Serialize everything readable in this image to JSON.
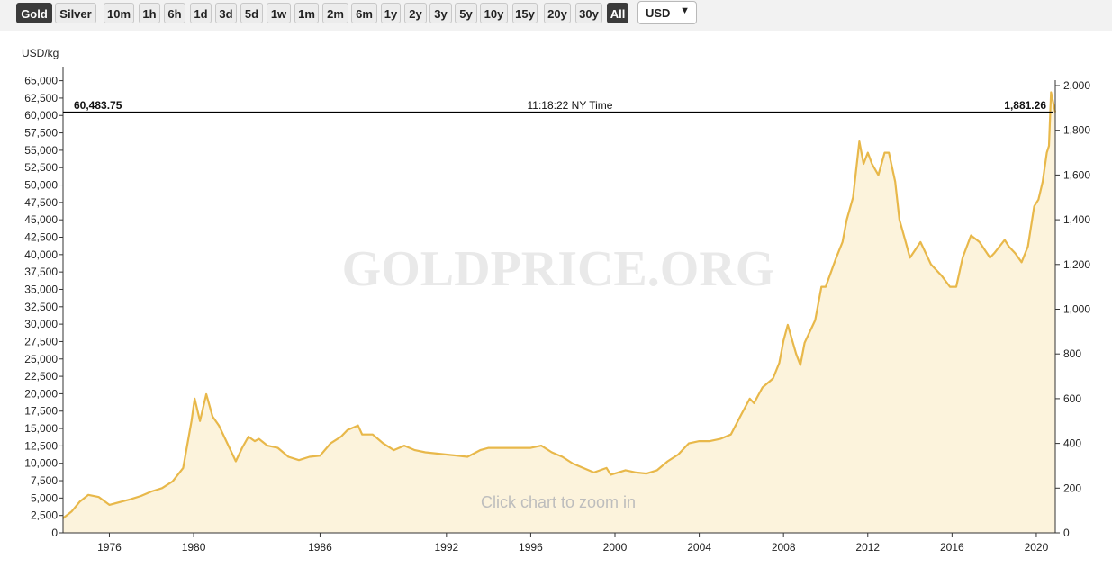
{
  "toolbar": {
    "metal_buttons": [
      {
        "label": "Gold",
        "active": true
      },
      {
        "label": "Silver",
        "active": false
      }
    ],
    "range_buttons": [
      {
        "label": "10m",
        "active": false
      },
      {
        "label": "1h",
        "active": false
      },
      {
        "label": "6h",
        "active": false
      },
      {
        "label": "1d",
        "active": false
      },
      {
        "label": "3d",
        "active": false
      },
      {
        "label": "5d",
        "active": false
      },
      {
        "label": "1w",
        "active": false
      },
      {
        "label": "1m",
        "active": false
      },
      {
        "label": "2m",
        "active": false
      },
      {
        "label": "6m",
        "active": false
      },
      {
        "label": "1y",
        "active": false
      },
      {
        "label": "2y",
        "active": false
      },
      {
        "label": "3y",
        "active": false
      },
      {
        "label": "5y",
        "active": false
      },
      {
        "label": "10y",
        "active": false
      },
      {
        "label": "15y",
        "active": false
      },
      {
        "label": "20y",
        "active": false
      },
      {
        "label": "30y",
        "active": false
      },
      {
        "label": "All",
        "active": true
      }
    ],
    "currency": "USD",
    "chevron_icon": "chevron-down-icon"
  },
  "chart_data": {
    "type": "area",
    "watermark": "GOLDPRICE.ORG",
    "hint": "Click chart to zoom in",
    "unit_label": "USD/kg",
    "line_color": "#e8b84a",
    "fill_color": "#fcf3dc",
    "crosshair": {
      "left_value": "60,483.75",
      "time": "11:18:22 NY Time",
      "right_value": "1,881.26",
      "y_value_usd_oz": 1881.26
    },
    "x_range": [
      1973.8,
      2020.9
    ],
    "x_ticks": [
      "1976",
      "1980",
      "1986",
      "1992",
      "1996",
      "2000",
      "2004",
      "2008",
      "2012",
      "2016",
      "2020"
    ],
    "left_axis": {
      "ticks": [
        "0",
        "2,500",
        "5,000",
        "7,500",
        "10,000",
        "12,500",
        "15,000",
        "17,500",
        "20,000",
        "22,500",
        "25,000",
        "27,500",
        "30,000",
        "32,500",
        "35,000",
        "37,500",
        "40,000",
        "42,500",
        "45,000",
        "47,500",
        "50,000",
        "52,500",
        "55,000",
        "57,500",
        "60,000",
        "62,500",
        "65,000"
      ]
    },
    "right_axis": {
      "ylim": [
        0,
        2000
      ],
      "ticks": [
        "0",
        "200",
        "400",
        "600",
        "800",
        "1,000",
        "1,200",
        "1,400",
        "1,600",
        "1,800",
        "2,000"
      ]
    },
    "series": [
      {
        "x": [
          1973.8,
          1974.2,
          1974.6,
          1975.0,
          1975.5,
          1976.0,
          1976.6,
          1977.0,
          1977.5,
          1978.0,
          1978.5,
          1979.0,
          1979.5,
          1979.9,
          1980.05,
          1980.3,
          1980.6,
          1980.9,
          1981.2,
          1981.6,
          1982.0,
          1982.3,
          1982.6,
          1982.9,
          1983.1,
          1983.5,
          1984.0,
          1984.5,
          1985.0,
          1985.5,
          1986.0,
          1986.5,
          1987.0,
          1987.3,
          1987.8,
          1988.0,
          1988.5,
          1989.0,
          1989.5,
          1990.0,
          1990.5,
          1991.0,
          1992.0,
          1993.0,
          1993.6,
          1994.0,
          1995.0,
          1996.0,
          1996.5,
          1997.0,
          1997.5,
          1998.0,
          1999.0,
          1999.6,
          1999.8,
          2000.5,
          2001.0,
          2001.5,
          2002.0,
          2002.5,
          2003.0,
          2003.5,
          2004.0,
          2004.5,
          2005.0,
          2005.5,
          2006.0,
          2006.4,
          2006.6,
          2007.0,
          2007.5,
          2007.8,
          2008.0,
          2008.2,
          2008.6,
          2008.8,
          2009.0,
          2009.5,
          2009.8,
          2010.0,
          2010.5,
          2010.8,
          2011.0,
          2011.3,
          2011.6,
          2011.8,
          2012.0,
          2012.2,
          2012.5,
          2012.8,
          2013.0,
          2013.3,
          2013.5,
          2013.8,
          2014.0,
          2014.5,
          2015.0,
          2015.5,
          2015.9,
          2016.2,
          2016.5,
          2016.9,
          2017.3,
          2017.8,
          2018.0,
          2018.5,
          2018.7,
          2019.0,
          2019.3,
          2019.6,
          2019.9,
          2020.1,
          2020.3,
          2020.5,
          2020.6,
          2020.7,
          2020.9
        ],
        "y": [
          65,
          95,
          140,
          170,
          160,
          125,
          140,
          150,
          165,
          185,
          200,
          230,
          290,
          500,
          600,
          500,
          620,
          520,
          480,
          400,
          320,
          380,
          430,
          410,
          420,
          390,
          380,
          340,
          325,
          340,
          345,
          400,
          430,
          460,
          480,
          440,
          440,
          400,
          370,
          390,
          370,
          360,
          350,
          340,
          370,
          380,
          380,
          380,
          390,
          360,
          340,
          310,
          270,
          290,
          260,
          280,
          270,
          265,
          280,
          320,
          350,
          400,
          410,
          410,
          420,
          440,
          530,
          600,
          580,
          650,
          690,
          760,
          860,
          930,
          800,
          750,
          850,
          950,
          1100,
          1100,
          1230,
          1300,
          1400,
          1500,
          1750,
          1650,
          1700,
          1650,
          1600,
          1700,
          1700,
          1570,
          1400,
          1300,
          1230,
          1300,
          1200,
          1150,
          1100,
          1100,
          1230,
          1330,
          1300,
          1230,
          1250,
          1310,
          1280,
          1250,
          1210,
          1280,
          1460,
          1490,
          1570,
          1700,
          1730,
          1970,
          1881
        ]
      }
    ]
  }
}
